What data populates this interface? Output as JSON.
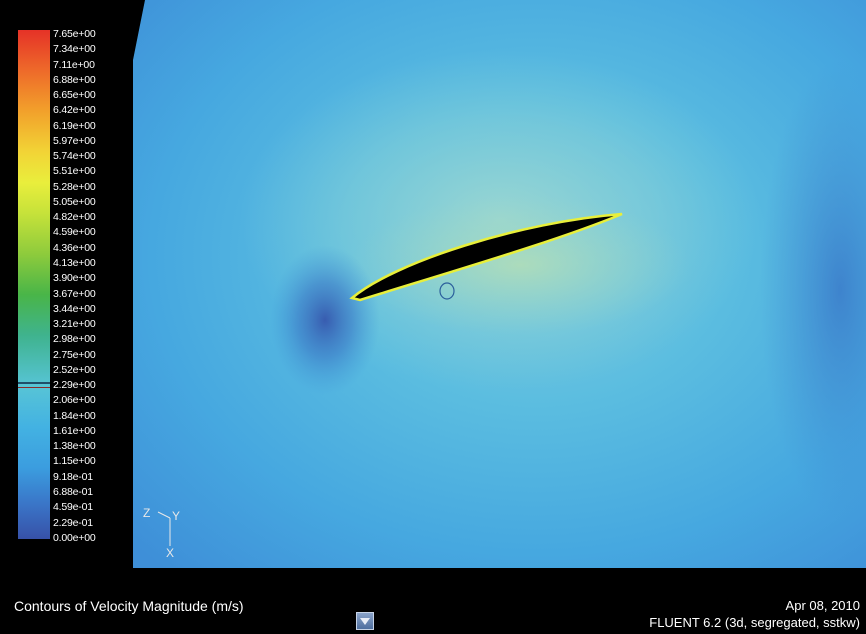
{
  "viewer": {
    "legend_ticks": [
      "7.65e+00",
      "7.34e+00",
      "7.11e+00",
      "6.88e+00",
      "6.65e+00",
      "6.42e+00",
      "6.19e+00",
      "5.97e+00",
      "5.74e+00",
      "5.51e+00",
      "5.28e+00",
      "5.05e+00",
      "4.82e+00",
      "4.59e+00",
      "4.36e+00",
      "4.13e+00",
      "3.90e+00",
      "3.67e+00",
      "3.44e+00",
      "3.21e+00",
      "2.98e+00",
      "2.75e+00",
      "2.52e+00",
      "2.29e+00",
      "2.06e+00",
      "1.84e+00",
      "1.61e+00",
      "1.38e+00",
      "1.15e+00",
      "9.18e-01",
      "6.88e-01",
      "4.59e-01",
      "2.29e-01",
      "0.00e+00"
    ],
    "axis_labels": {
      "z": "Z",
      "y": "Y",
      "x": "X"
    },
    "colors": {
      "field_base": "#4fb3dc",
      "high_velocity": "#9fd6d0",
      "low_velocity": "#3a6ec0",
      "airfoil": "#000000",
      "airfoil_edge": "#e8ef3a"
    },
    "icons": {
      "footer_button": "chevron-down-icon"
    }
  },
  "footer": {
    "title": "Contours of Velocity Magnitude (m/s)",
    "date": "Apr 08, 2010",
    "solver": "FLUENT 6.2 (3d, segregated, sstkw)"
  }
}
